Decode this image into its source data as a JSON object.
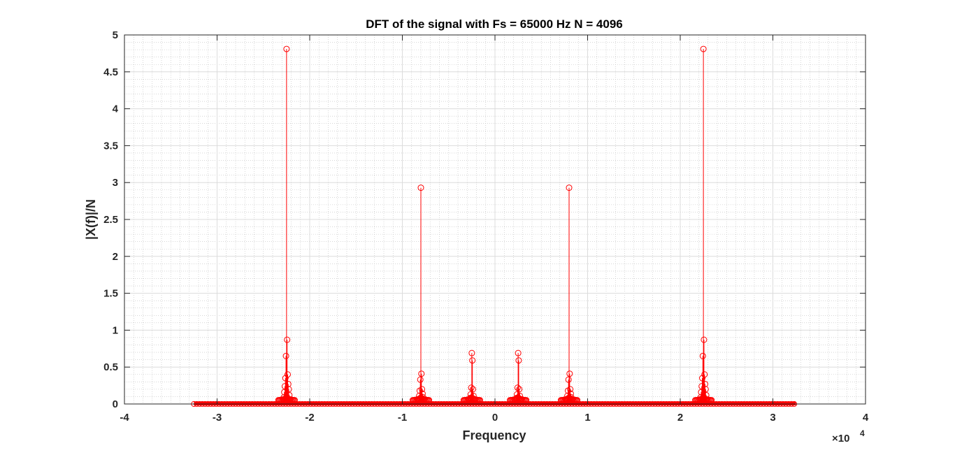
{
  "chart_data": {
    "type": "stem",
    "title": "DFT of the signal with Fs = 65000 Hz N = 4096",
    "xlabel": "Frequency",
    "ylabel": "|X(f)|/N",
    "xlim": [
      -40000,
      40000
    ],
    "ylim": [
      0,
      5
    ],
    "x_ticks": [
      -40000,
      -30000,
      -20000,
      -10000,
      0,
      10000,
      20000,
      30000,
      40000
    ],
    "x_tick_labels": [
      "-4",
      "-3",
      "-2",
      "-1",
      "0",
      "1",
      "2",
      "3",
      "4"
    ],
    "x_exponent_label": "×10",
    "x_exponent_power": "4",
    "y_ticks": [
      0,
      0.5,
      1,
      1.5,
      2,
      2.5,
      3,
      3.5,
      4,
      4.5,
      5
    ],
    "y_tick_labels": [
      "0",
      "0.5",
      "1",
      "1.5",
      "2",
      "2.5",
      "3",
      "3.5",
      "4",
      "4.5",
      "5"
    ],
    "grid": "on",
    "minor_grid": "on",
    "color": "#ff0000",
    "baseline_range": [
      -32500,
      32484
    ],
    "peaks": [
      {
        "x": -22500,
        "values": [
          4.81,
          0.87,
          0.65,
          0.4,
          0.35,
          0.27,
          0.24,
          0.2,
          0.16,
          0.12,
          0.09,
          0.06
        ]
      },
      {
        "x": 22500,
        "values": [
          4.81,
          0.87,
          0.65,
          0.4,
          0.35,
          0.27,
          0.24,
          0.2,
          0.16,
          0.12,
          0.09,
          0.06
        ]
      },
      {
        "x": -8000,
        "values": [
          2.93,
          0.41,
          0.33,
          0.2,
          0.18,
          0.14,
          0.11,
          0.09,
          0.06
        ]
      },
      {
        "x": 8000,
        "values": [
          2.93,
          0.41,
          0.33,
          0.2,
          0.18,
          0.14,
          0.11,
          0.09,
          0.06
        ]
      },
      {
        "x": -2500,
        "values": [
          0.69,
          0.59,
          0.22,
          0.2,
          0.13,
          0.11,
          0.08,
          0.06
        ]
      },
      {
        "x": 2500,
        "values": [
          0.69,
          0.59,
          0.22,
          0.2,
          0.13,
          0.11,
          0.08,
          0.06
        ]
      }
    ]
  }
}
